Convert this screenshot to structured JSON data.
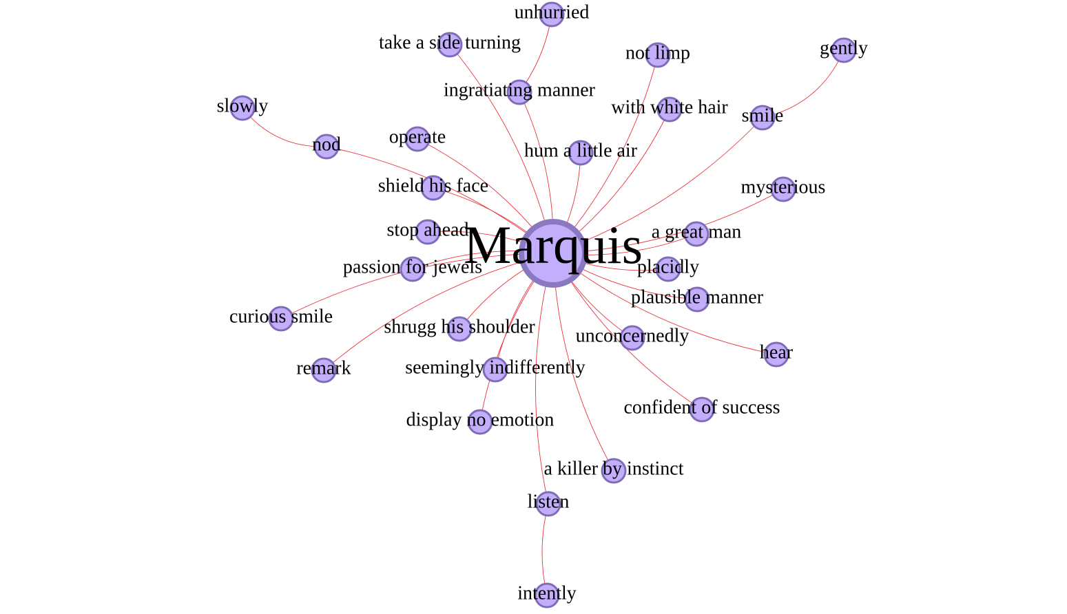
{
  "graph": {
    "center": {
      "id": "marquis",
      "label": "Marquis"
    },
    "nodes": [
      {
        "id": "unhurried",
        "label": "unhurried"
      },
      {
        "id": "take-a-side-turning",
        "label": "take a side turning"
      },
      {
        "id": "ingratiating-manner",
        "label": "ingratiating manner"
      },
      {
        "id": "not-limp",
        "label": "not limp"
      },
      {
        "id": "gently",
        "label": "gently"
      },
      {
        "id": "slowly",
        "label": "slowly"
      },
      {
        "id": "with-white-hair",
        "label": "with white hair"
      },
      {
        "id": "smile",
        "label": "smile"
      },
      {
        "id": "nod",
        "label": "nod"
      },
      {
        "id": "operate",
        "label": "operate"
      },
      {
        "id": "hum-a-little-air",
        "label": "hum a little air"
      },
      {
        "id": "shield-his-face",
        "label": "shield his face"
      },
      {
        "id": "mysterious",
        "label": "mysterious"
      },
      {
        "id": "stop-ahead",
        "label": "stop ahead"
      },
      {
        "id": "a-great-man",
        "label": "a great man"
      },
      {
        "id": "passion-for-jewels",
        "label": "passion for jewels"
      },
      {
        "id": "placidly",
        "label": "placidly"
      },
      {
        "id": "plausible-manner",
        "label": "plausible manner"
      },
      {
        "id": "curious-smile",
        "label": "curious smile"
      },
      {
        "id": "shrugg-his-shoulder",
        "label": "shrugg his shoulder"
      },
      {
        "id": "unconcernedly",
        "label": "unconcernedly"
      },
      {
        "id": "hear",
        "label": "hear"
      },
      {
        "id": "remark",
        "label": "remark"
      },
      {
        "id": "seemingly-indifferently",
        "label": "seemingly indifferently"
      },
      {
        "id": "confident-of-success",
        "label": "confident of success"
      },
      {
        "id": "display-no-emotion",
        "label": "display no emotion"
      },
      {
        "id": "a-killer-by-instinct",
        "label": "a killer by instinct"
      },
      {
        "id": "listen",
        "label": "listen"
      },
      {
        "id": "intently",
        "label": "intently"
      }
    ],
    "edges": [
      [
        "marquis",
        "take-a-side-turning"
      ],
      [
        "marquis",
        "ingratiating-manner"
      ],
      [
        "ingratiating-manner",
        "unhurried"
      ],
      [
        "marquis",
        "not-limp"
      ],
      [
        "marquis",
        "with-white-hair"
      ],
      [
        "marquis",
        "smile"
      ],
      [
        "smile",
        "gently"
      ],
      [
        "marquis",
        "nod"
      ],
      [
        "nod",
        "slowly"
      ],
      [
        "marquis",
        "operate"
      ],
      [
        "marquis",
        "hum-a-little-air"
      ],
      [
        "marquis",
        "shield-his-face"
      ],
      [
        "marquis",
        "mysterious"
      ],
      [
        "marquis",
        "stop-ahead"
      ],
      [
        "marquis",
        "a-great-man"
      ],
      [
        "marquis",
        "passion-for-jewels"
      ],
      [
        "marquis",
        "placidly"
      ],
      [
        "marquis",
        "plausible-manner"
      ],
      [
        "marquis",
        "curious-smile"
      ],
      [
        "marquis",
        "shrugg-his-shoulder"
      ],
      [
        "marquis",
        "unconcernedly"
      ],
      [
        "marquis",
        "hear"
      ],
      [
        "marquis",
        "remark"
      ],
      [
        "marquis",
        "seemingly-indifferently"
      ],
      [
        "marquis",
        "confident-of-success"
      ],
      [
        "marquis",
        "display-no-emotion"
      ],
      [
        "marquis",
        "a-killer-by-instinct"
      ],
      [
        "marquis",
        "listen"
      ],
      [
        "listen",
        "intently"
      ]
    ],
    "colors": {
      "edge": "#e8323c",
      "node_fill": "#c3aefc",
      "node_stroke": "#7f6cb8"
    }
  }
}
